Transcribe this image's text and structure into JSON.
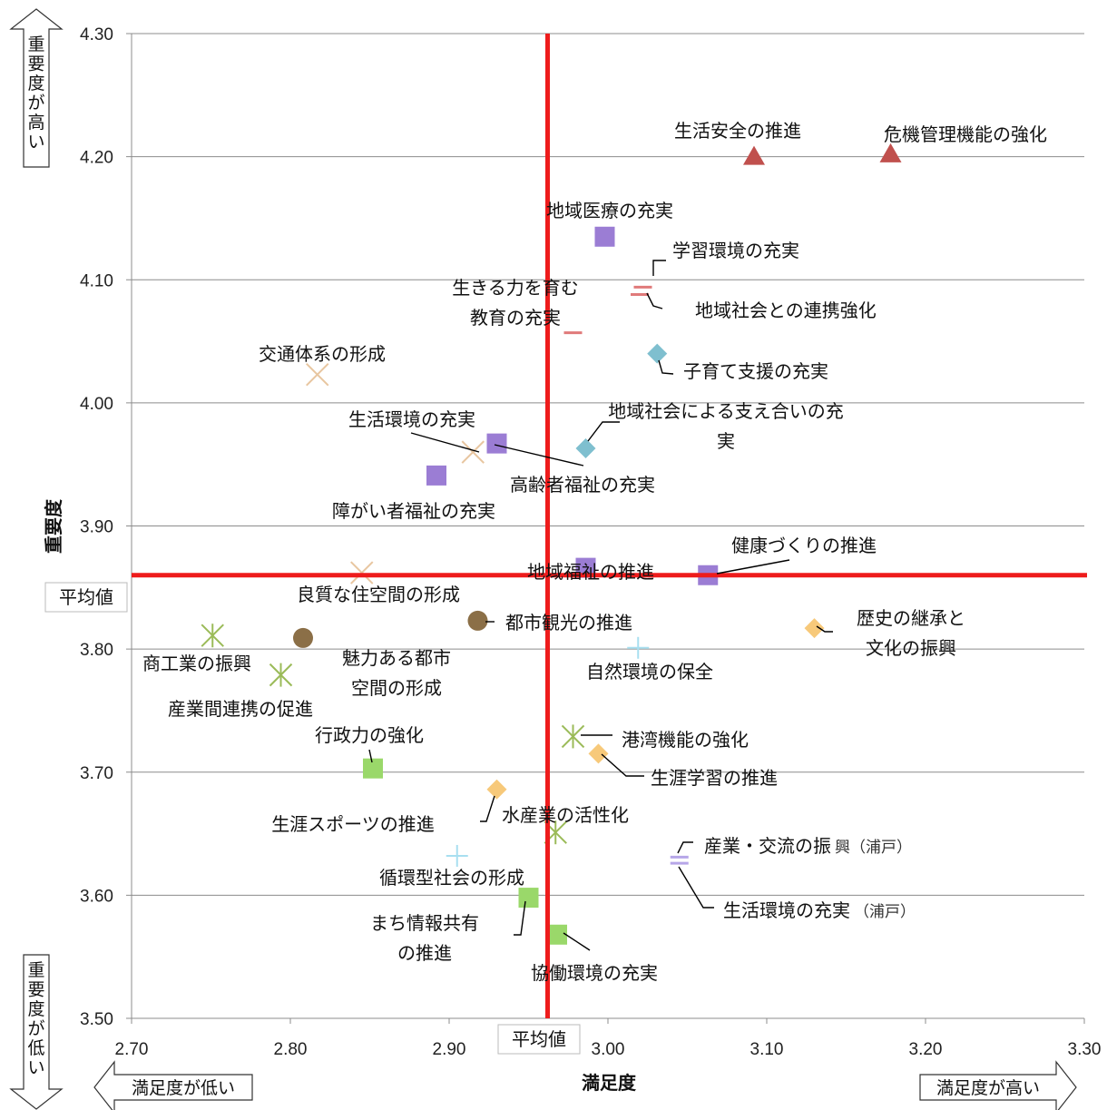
{
  "chart_data": {
    "type": "scatter",
    "title": "",
    "xlabel": "満足度",
    "ylabel": "重要度",
    "xlim": [
      2.7,
      3.3
    ],
    "ylim": [
      3.5,
      4.3
    ],
    "x_ticks": [
      "2.70",
      "2.80",
      "2.90",
      "3.00",
      "3.10",
      "3.20",
      "3.30"
    ],
    "y_ticks": [
      "3.50",
      "3.60",
      "3.70",
      "3.80",
      "3.90",
      "4.00",
      "4.10",
      "4.20",
      "4.30"
    ],
    "grid": "horizontal",
    "average_lines": {
      "x": 2.962,
      "y": 3.86,
      "color": "#ee1c1c"
    },
    "average_labels": {
      "x": "平均値",
      "y": "平均値"
    },
    "corner_labels": {
      "importance_high": "重要度が高い",
      "importance_low": "重要度が低い",
      "satisfaction_low": "満足度が低い",
      "satisfaction_high": "満足度が高い"
    },
    "points": [
      {
        "label": "生活安全の推進",
        "x": 3.092,
        "y": 4.2,
        "marker": "triangle",
        "color": "#c0504d"
      },
      {
        "label": "危機管理機能の強化",
        "x": 3.178,
        "y": 4.202,
        "marker": "triangle",
        "color": "#c0504d"
      },
      {
        "label": "地域医療の充実",
        "x": 2.998,
        "y": 4.135,
        "marker": "square",
        "color": "#9b7dd4"
      },
      {
        "label": "学習環境の充実",
        "x": 3.022,
        "y": 4.094,
        "marker": "dash",
        "color": "#e07a7a"
      },
      {
        "label": "地域社会との連携強化",
        "x": 3.02,
        "y": 4.088,
        "marker": "dash",
        "color": "#e07a7a"
      },
      {
        "label": "生きる力を育む教育の充実",
        "x": 2.978,
        "y": 4.057,
        "marker": "dash",
        "color": "#e07a7a"
      },
      {
        "label": "子育て支援の充実",
        "x": 3.031,
        "y": 4.04,
        "marker": "diamond",
        "color": "#7fbfcf"
      },
      {
        "label": "交通体系の形成",
        "x": 2.817,
        "y": 4.023,
        "marker": "x",
        "color": "#e8c6a0"
      },
      {
        "label": "地域社会による支え合いの充実",
        "x": 2.986,
        "y": 3.963,
        "marker": "diamond",
        "color": "#7fbfcf"
      },
      {
        "label": "生活環境の充実",
        "x": 2.915,
        "y": 3.96,
        "marker": "x",
        "color": "#e8c6a0"
      },
      {
        "label": "高齢者福祉の充実",
        "x": 2.93,
        "y": 3.967,
        "marker": "square",
        "color": "#9b7dd4"
      },
      {
        "label": "障がい者福祉の充実",
        "x": 2.892,
        "y": 3.941,
        "marker": "square",
        "color": "#9b7dd4"
      },
      {
        "label": "健康づくりの推進",
        "x": 3.063,
        "y": 3.86,
        "marker": "square",
        "color": "#9b7dd4"
      },
      {
        "label": "地域福祉の推進",
        "x": 2.986,
        "y": 3.866,
        "marker": "square",
        "color": "#9b7dd4"
      },
      {
        "label": "良質な住空間の形成",
        "x": 2.845,
        "y": 3.862,
        "marker": "x",
        "color": "#e8c6a0"
      },
      {
        "label": "都市観光の推進",
        "x": 2.918,
        "y": 3.823,
        "marker": "circle",
        "color": "#8b6f47"
      },
      {
        "label": "魅力ある都市空間の形成",
        "x": 2.808,
        "y": 3.809,
        "marker": "circle",
        "color": "#8b6f47"
      },
      {
        "label": "商工業の振興",
        "x": 2.751,
        "y": 3.811,
        "marker": "star",
        "color": "#9bbb59"
      },
      {
        "label": "産業間連携の促進",
        "x": 2.794,
        "y": 3.779,
        "marker": "star",
        "color": "#9bbb59"
      },
      {
        "label": "歴史の継承と文化の振興",
        "x": 3.13,
        "y": 3.817,
        "marker": "diamond",
        "color": "#f7c97a"
      },
      {
        "label": "自然環境の保全",
        "x": 3.019,
        "y": 3.801,
        "marker": "plus",
        "color": "#a8dff0"
      },
      {
        "label": "港湾機能の強化",
        "x": 2.978,
        "y": 3.729,
        "marker": "star",
        "color": "#9bbb59"
      },
      {
        "label": "生涯学習の推進",
        "x": 2.994,
        "y": 3.715,
        "marker": "diamond",
        "color": "#f7c97a"
      },
      {
        "label": "行政力の強化",
        "x": 2.852,
        "y": 3.703,
        "marker": "square",
        "color": "#9ad86a"
      },
      {
        "label": "生涯スポーツの推進",
        "x": 2.93,
        "y": 3.686,
        "marker": "diamond",
        "color": "#f7c97a"
      },
      {
        "label": "水産業の活性化",
        "x": 2.967,
        "y": 3.651,
        "marker": "star",
        "color": "#9bbb59"
      },
      {
        "label": "循環型社会の形成",
        "x": 2.905,
        "y": 3.632,
        "marker": "plus",
        "color": "#a8dff0"
      },
      {
        "label": "産業・交流の振興（浦戸）",
        "x": 3.045,
        "y": 3.631,
        "marker": "dash",
        "color": "#b6a6e8"
      },
      {
        "label": "生活環境の充実（浦戸）",
        "x": 3.045,
        "y": 3.626,
        "marker": "dash",
        "color": "#b6a6e8"
      },
      {
        "label": "まち情報共有の推進",
        "x": 2.95,
        "y": 3.598,
        "marker": "square",
        "color": "#9ad86a"
      },
      {
        "label": "協働環境の充実",
        "x": 2.968,
        "y": 3.568,
        "marker": "square",
        "color": "#9ad86a"
      }
    ]
  }
}
